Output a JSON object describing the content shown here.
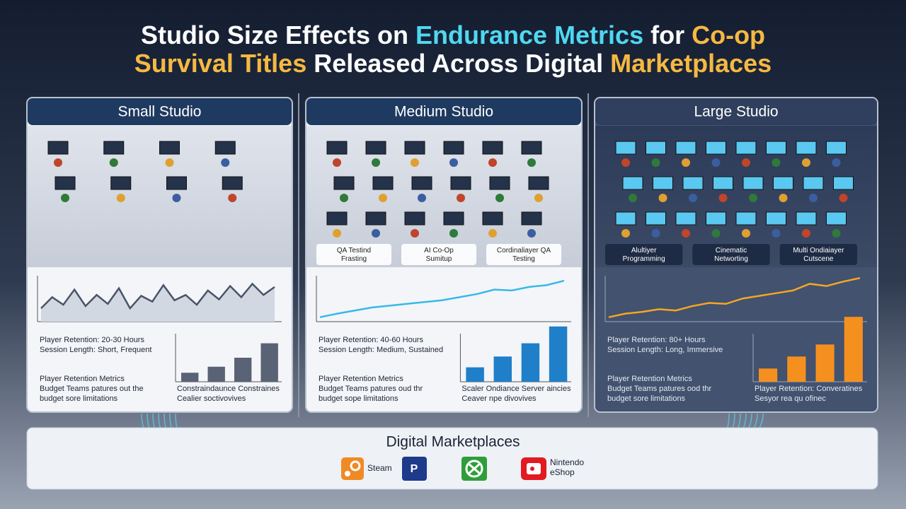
{
  "title": {
    "lines": [
      [
        {
          "text": "Studio Size Effects on ",
          "color": "#ffffff"
        },
        {
          "text": "Endurance Metrics",
          "color": "#4fd8f0"
        },
        {
          "text": " for ",
          "color": "#ffffff"
        },
        {
          "text": "Co-op",
          "color": "#f5b942"
        }
      ],
      [
        {
          "text": "Survival Titles",
          "color": "#f5b942"
        },
        {
          "text": " Released Across Digital ",
          "color": "#ffffff"
        },
        {
          "text": "Marketplaces",
          "color": "#f5b942"
        }
      ]
    ]
  },
  "panels": [
    {
      "title": "Small Studio",
      "theme": "light",
      "line_color": "#4a5468",
      "bar_color": "#5a6275",
      "tags": [],
      "line": [
        30,
        55,
        38,
        72,
        35,
        60,
        40,
        75,
        30,
        58,
        45,
        82,
        48,
        60,
        38,
        70,
        50,
        80,
        55,
        85,
        60,
        78
      ],
      "bars": [
        15,
        25,
        40,
        64
      ],
      "summary": [
        "Player Retention: 20-30 Hours",
        "Session Length: Short, Frequent"
      ],
      "notes": [
        "Player Retention Metrics",
        "Budget Teams patures out the",
        "budget sore limitations"
      ],
      "bar_caption": [
        "Constraindaunce Constraines",
        "Cealier soctivovives"
      ]
    },
    {
      "title": "Medium Studio",
      "theme": "light",
      "line_color": "#3ab8e8",
      "bar_color": "#1f7fc8",
      "tags": [
        "QA Testind Frasting",
        "AI Co-Op Sumitup",
        "Cordinaliayer QA Testing"
      ],
      "line": [
        10,
        18,
        25,
        32,
        36,
        40,
        44,
        48,
        55,
        62,
        72,
        70,
        78,
        82,
        92
      ],
      "bars": [
        24,
        42,
        64,
        92
      ],
      "summary": [
        "Player Retention: 40-60 Hours",
        "Session Length: Medium, Sustained"
      ],
      "notes": [
        "Player Retention Metrics",
        "Budget Teams patures oud thr",
        "budget sope limitations"
      ],
      "bar_caption": [
        "Scaler Ondiance Server aincies",
        "Ceaver npe divovives"
      ]
    },
    {
      "title": "Large Studio",
      "theme": "dark",
      "line_color": "#f5a623",
      "bar_color": "#f5901e",
      "tags": [
        "Alultiyer Programming",
        "Cinematic Networting",
        "Multi Ondiaiayer Cutscene"
      ],
      "line": [
        10,
        18,
        22,
        28,
        25,
        35,
        42,
        40,
        52,
        58,
        64,
        70,
        85,
        80,
        90,
        98
      ],
      "bars": [
        22,
        42,
        62,
        108
      ],
      "summary": [
        "Player Retention: 80+ Hours",
        "Session Length: Long, Immersive"
      ],
      "notes": [
        "Player Retention Metrics",
        "Budget Teams patures ood thr",
        "budget sore limitations"
      ],
      "bar_caption": [
        "Player Retention: Converatines",
        "Sesyor rea qu ofinec"
      ]
    }
  ],
  "marketplaces": {
    "title": "Digital Marketplaces",
    "stores": [
      "Steam",
      "Nintendo eShop"
    ]
  }
}
